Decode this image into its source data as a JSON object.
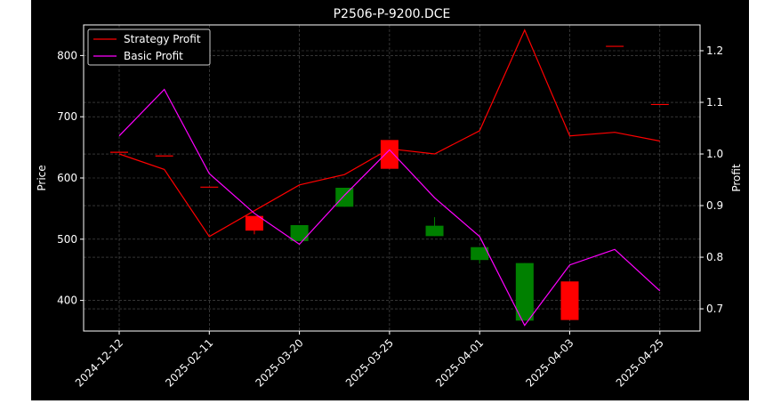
{
  "chart_data": {
    "type": "candlestick-line",
    "title": "P2506-P-9200.DCE",
    "ylabel_left": "Price",
    "ylabel_right": "Profit",
    "x_tick_labels": [
      "2024-12-12",
      "2025-02-11",
      "2025-03-20",
      "2025-03-25",
      "2025-04-01",
      "2025-04-03",
      "2025-04-25"
    ],
    "ylim_left": [
      350,
      850
    ],
    "ylim_right": [
      0.657,
      1.25
    ],
    "y_ticks_left": [
      400,
      500,
      600,
      700,
      800
    ],
    "y_ticks_right": [
      0.7,
      0.8,
      0.9,
      1.0,
      1.1,
      1.2
    ],
    "grid": true,
    "legend_position": "top-left",
    "candles": [
      {
        "x": 0,
        "open": 642,
        "close": 642,
        "high": 642,
        "low": 642
      },
      {
        "x": 0.5,
        "open": 636,
        "close": 636,
        "high": 636,
        "low": 636
      },
      {
        "x": 1,
        "open": 585,
        "close": 585,
        "high": 585,
        "low": 585
      },
      {
        "x": 1.5,
        "open": 538,
        "close": 514,
        "high": 538,
        "low": 508
      },
      {
        "x": 2,
        "open": 497,
        "close": 523,
        "high": 523,
        "low": 497
      },
      {
        "x": 2.5,
        "open": 553,
        "close": 584,
        "high": 584,
        "low": 553
      },
      {
        "x": 3,
        "open": 662,
        "close": 615,
        "high": 662,
        "low": 615
      },
      {
        "x": 3.5,
        "open": 505,
        "close": 522,
        "high": 536,
        "low": 505
      },
      {
        "x": 4,
        "open": 466,
        "close": 487,
        "high": 487,
        "low": 460
      },
      {
        "x": 4.5,
        "open": 367,
        "close": 461,
        "high": 461,
        "low": 367
      },
      {
        "x": 5,
        "open": 431,
        "close": 368,
        "high": 431,
        "low": 368
      },
      {
        "x": 5.5,
        "open": 815,
        "close": 815,
        "high": 815,
        "low": 815
      },
      {
        "x": 6,
        "open": 720,
        "close": 720,
        "high": 720,
        "low": 720
      }
    ],
    "series": [
      {
        "name": "Strategy Profit",
        "color": "#ff0000",
        "x": [
          0,
          0.5,
          1,
          1.5,
          2,
          2.5,
          3,
          3.5,
          4,
          4.5,
          5,
          5.5,
          6
        ],
        "values": [
          1.0,
          0.97,
          0.84,
          0.89,
          0.94,
          0.96,
          1.01,
          1.0,
          1.045,
          1.24,
          1.035,
          1.042,
          1.025
        ]
      },
      {
        "name": "Basic Profit",
        "color": "#ff00ff",
        "x": [
          0,
          0.5,
          1,
          1.5,
          2,
          2.5,
          3,
          3.5,
          4,
          4.5,
          5,
          5.5,
          6
        ],
        "values": [
          1.035,
          1.125,
          0.962,
          0.885,
          0.825,
          0.92,
          1.008,
          0.915,
          0.84,
          0.668,
          0.785,
          0.815,
          0.735
        ]
      }
    ],
    "candle_up_color": "#008000",
    "candle_down_color": "#ff0000",
    "grid_color": "#555555"
  }
}
